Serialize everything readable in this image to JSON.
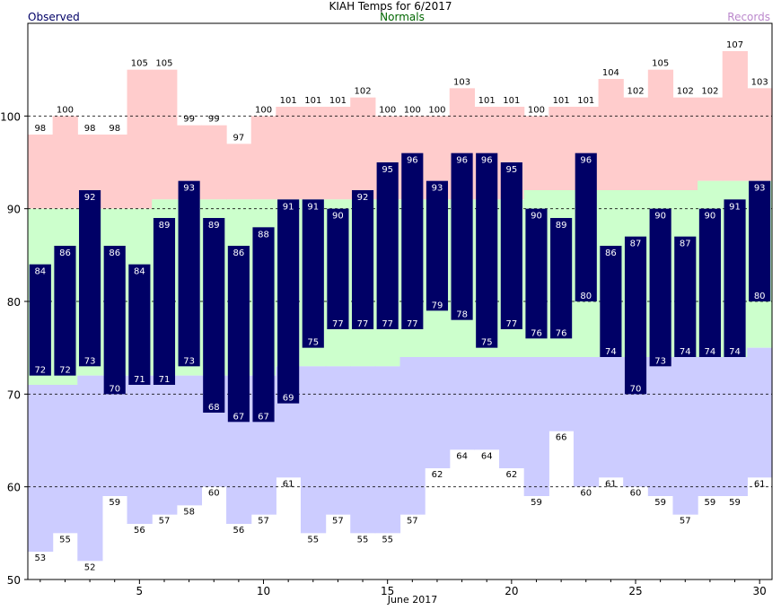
{
  "title": "KIAH Temps for 6/2017",
  "legend": {
    "observed": "Observed",
    "normals": "Normals",
    "records": "Records"
  },
  "colors": {
    "observed_bar": "#000066",
    "record_high_fill": "#ffcccc",
    "record_low_fill": "#ccccff",
    "normal_fill": "#ccffcc",
    "observed_text": "#000066",
    "normals_text": "#006600",
    "records_text": "#bb88cc"
  },
  "chart_data": {
    "type": "bar",
    "title": "KIAH Temps for 6/2017",
    "xlabel": "June 2017",
    "ylabel": "",
    "xlim": [
      0.5,
      30.5
    ],
    "ylim": [
      50,
      110
    ],
    "grid": true,
    "x_ticks": [
      5,
      10,
      15,
      20,
      25,
      30
    ],
    "y_ticks": [
      50,
      60,
      70,
      80,
      90,
      100
    ],
    "days": [
      1,
      2,
      3,
      4,
      5,
      6,
      7,
      8,
      9,
      10,
      11,
      12,
      13,
      14,
      15,
      16,
      17,
      18,
      19,
      20,
      21,
      22,
      23,
      24,
      25,
      26,
      27,
      28,
      29,
      30
    ],
    "series": [
      {
        "name": "Observed",
        "key": "observed_high",
        "values": [
          84,
          86,
          92,
          86,
          84,
          89,
          93,
          89,
          86,
          88,
          91,
          91,
          90,
          92,
          95,
          96,
          93,
          96,
          96,
          95,
          90,
          89,
          96,
          86,
          87,
          90,
          87,
          90,
          91,
          93
        ]
      },
      {
        "name": "Observed",
        "key": "observed_low",
        "values": [
          72,
          72,
          73,
          70,
          71,
          71,
          73,
          68,
          67,
          67,
          69,
          75,
          77,
          77,
          77,
          77,
          79,
          78,
          75,
          77,
          76,
          76,
          80,
          74,
          70,
          73,
          74,
          74,
          74,
          80
        ]
      },
      {
        "name": "Normals",
        "key": "normal_high",
        "values": [
          90,
          90,
          90,
          90,
          90,
          91,
          91,
          91,
          91,
          91,
          91,
          91,
          91,
          91,
          91,
          91,
          91,
          91,
          91,
          91,
          92,
          92,
          92,
          92,
          92,
          92,
          92,
          93,
          93,
          93
        ]
      },
      {
        "name": "Normals",
        "key": "normal_low",
        "values": [
          71,
          71,
          72,
          72,
          72,
          72,
          72,
          72,
          72,
          72,
          73,
          73,
          73,
          73,
          73,
          74,
          74,
          74,
          74,
          74,
          74,
          74,
          74,
          74,
          74,
          74,
          74,
          74,
          74,
          75
        ]
      },
      {
        "name": "Records",
        "key": "record_high",
        "values": [
          98,
          100,
          98,
          98,
          105,
          105,
          99,
          99,
          97,
          100,
          101,
          101,
          101,
          102,
          100,
          100,
          100,
          103,
          101,
          101,
          100,
          101,
          101,
          104,
          102,
          105,
          102,
          102,
          107,
          103
        ]
      },
      {
        "name": "Records",
        "key": "record_low",
        "values": [
          53,
          55,
          52,
          59,
          56,
          57,
          58,
          60,
          56,
          57,
          61,
          55,
          57,
          55,
          55,
          57,
          62,
          64,
          64,
          62,
          59,
          66,
          60,
          61,
          60,
          59,
          57,
          59,
          59,
          61
        ]
      }
    ]
  }
}
